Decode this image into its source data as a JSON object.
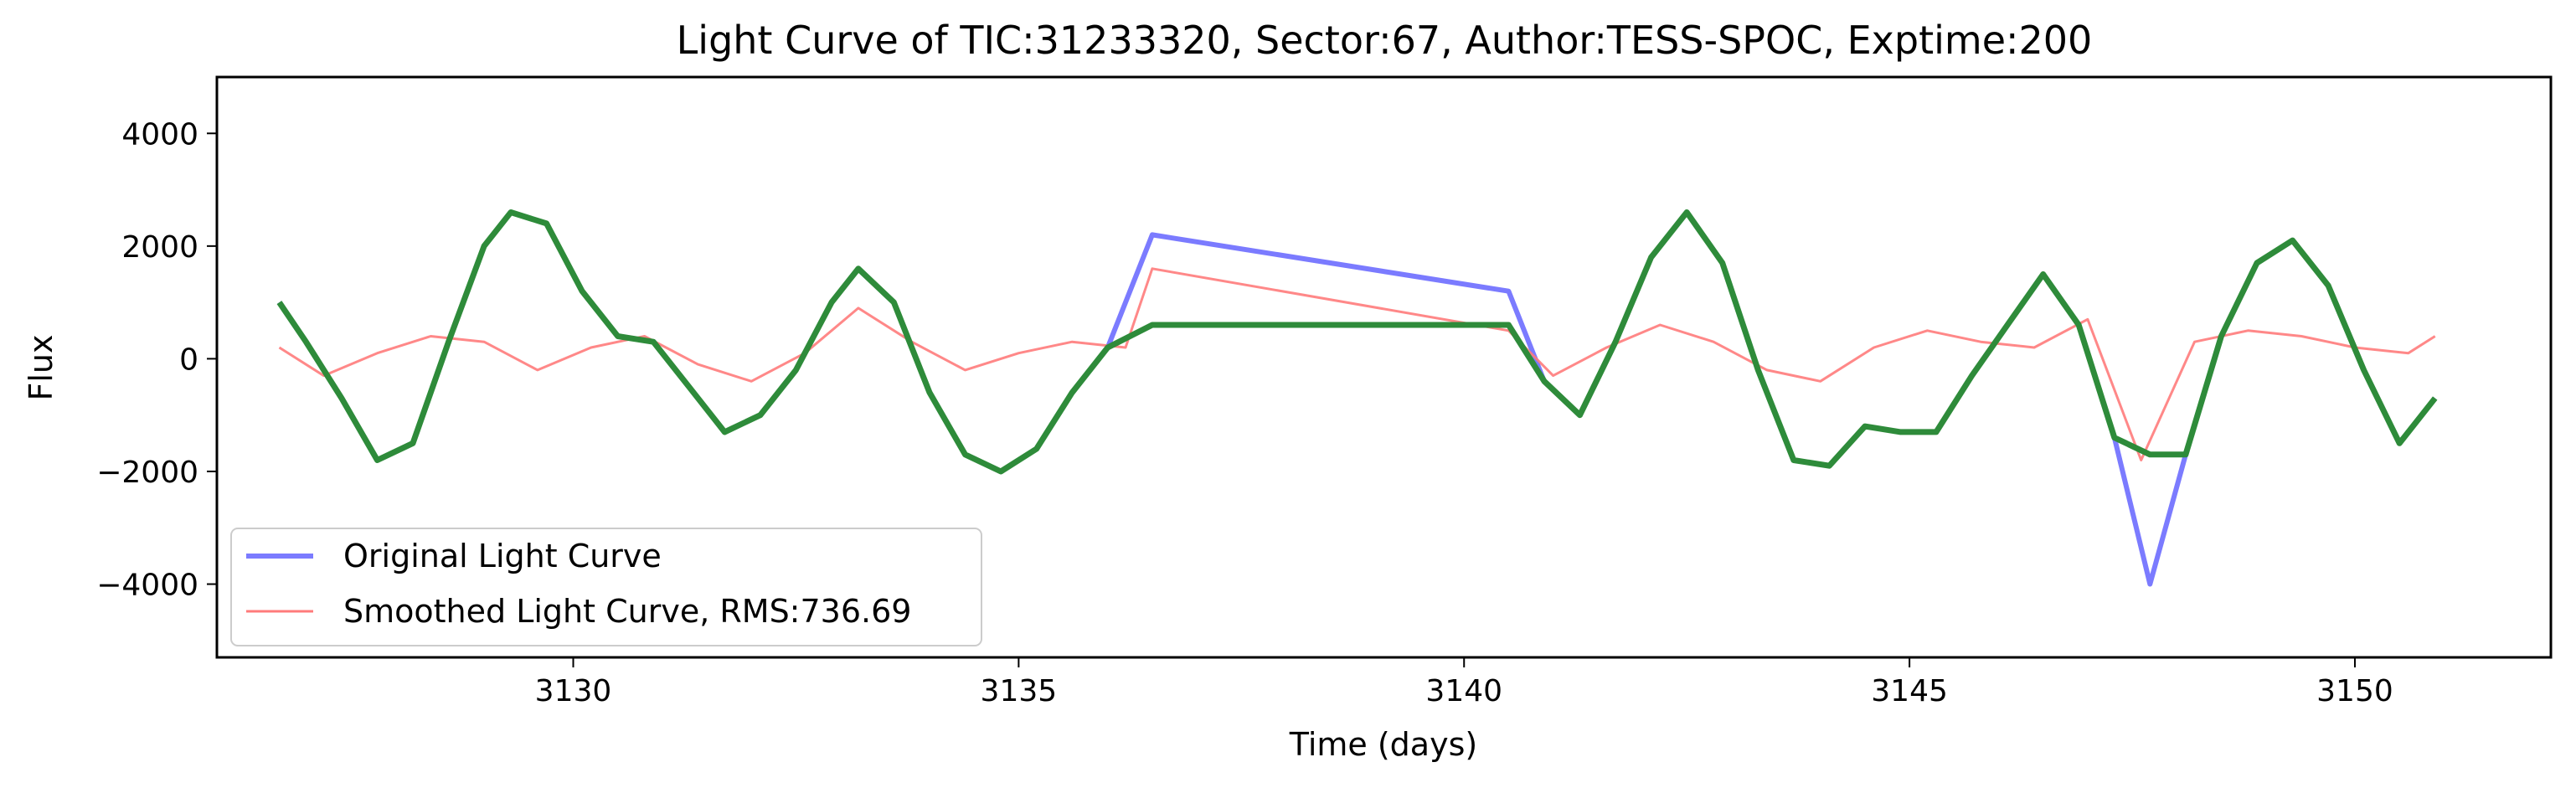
{
  "chart_data": {
    "type": "line",
    "title": "Light Curve of TIC:31233320, Sector:67, Author:TESS-SPOC, Exptime:200",
    "xlabel": "Time (days)",
    "ylabel": "Flux",
    "xlim": [
      3126.0,
      3152.2
    ],
    "ylim": [
      -5300,
      5000
    ],
    "x_ticks": [
      3130,
      3135,
      3140,
      3145,
      3150
    ],
    "y_ticks": [
      -4000,
      -2000,
      0,
      2000,
      4000
    ],
    "grid": false,
    "legend_placement": "lower-left",
    "series": [
      {
        "name": "Original Light Curve",
        "color": "#7b7bff",
        "x": [
          3126.7,
          3127.0,
          3127.4,
          3127.8,
          3128.2,
          3128.6,
          3129.0,
          3129.3,
          3129.7,
          3130.1,
          3130.5,
          3130.9,
          3131.3,
          3131.7,
          3132.1,
          3132.5,
          3132.9,
          3133.2,
          3133.6,
          3134.0,
          3134.4,
          3134.8,
          3135.2,
          3135.6,
          3136.0,
          3136.5,
          3140.5,
          3140.9,
          3141.3,
          3141.7,
          3142.1,
          3142.5,
          3142.9,
          3143.3,
          3143.7,
          3144.1,
          3144.5,
          3144.9,
          3145.3,
          3145.7,
          3146.1,
          3146.5,
          3146.9,
          3147.3,
          3147.7,
          3148.1,
          3148.5,
          3148.9,
          3149.3,
          3149.7,
          3150.1,
          3150.5,
          3150.9
        ],
        "values": [
          1000,
          300,
          -700,
          -1800,
          -1500,
          300,
          2000,
          2600,
          2400,
          1200,
          400,
          300,
          -500,
          -1300,
          -1000,
          -200,
          1000,
          1600,
          1000,
          -600,
          -1700,
          -2000,
          -1600,
          -600,
          200,
          2200,
          1200,
          -400,
          -1000,
          300,
          1800,
          2600,
          1700,
          -200,
          -1800,
          -1900,
          -1200,
          -1300,
          -1300,
          -300,
          600,
          1500,
          600,
          -1400,
          -4000,
          -1700,
          400,
          1700,
          2100,
          1300,
          -200,
          -1500,
          -700
        ]
      },
      {
        "name": "Smoothed Light Curve, RMS:736.69",
        "color": "#ff7b7b",
        "x": [
          3126.7,
          3127.2,
          3127.8,
          3128.4,
          3129.0,
          3129.6,
          3130.2,
          3130.8,
          3131.4,
          3132.0,
          3132.6,
          3133.2,
          3133.8,
          3134.4,
          3135.0,
          3135.6,
          3136.2,
          3136.5,
          3140.5,
          3141.0,
          3141.6,
          3142.2,
          3142.8,
          3143.4,
          3144.0,
          3144.6,
          3145.2,
          3145.8,
          3146.4,
          3147.0,
          3147.6,
          3148.2,
          3148.8,
          3149.4,
          3150.0,
          3150.6,
          3150.9
        ],
        "values": [
          200,
          -300,
          100,
          400,
          300,
          -200,
          200,
          400,
          -100,
          -400,
          100,
          900,
          300,
          -200,
          100,
          300,
          200,
          1600,
          500,
          -300,
          200,
          600,
          300,
          -200,
          -400,
          200,
          500,
          300,
          200,
          700,
          -1800,
          300,
          500,
          400,
          200,
          100,
          400
        ]
      },
      {
        "name": "",
        "color": "#2e8b3a",
        "x": [
          3126.7,
          3127.0,
          3127.4,
          3127.8,
          3128.2,
          3128.6,
          3129.0,
          3129.3,
          3129.7,
          3130.1,
          3130.5,
          3130.9,
          3131.3,
          3131.7,
          3132.1,
          3132.5,
          3132.9,
          3133.2,
          3133.6,
          3134.0,
          3134.4,
          3134.8,
          3135.2,
          3135.6,
          3136.0,
          3136.5,
          3140.5,
          3140.9,
          3141.3,
          3141.7,
          3142.1,
          3142.5,
          3142.9,
          3143.3,
          3143.7,
          3144.1,
          3144.5,
          3144.9,
          3145.3,
          3145.7,
          3146.1,
          3146.5,
          3146.9,
          3147.3,
          3147.7,
          3148.1,
          3148.5,
          3148.9,
          3149.3,
          3149.7,
          3150.1,
          3150.5,
          3150.9
        ],
        "values": [
          1000,
          300,
          -700,
          -1800,
          -1500,
          300,
          2000,
          2600,
          2400,
          1200,
          400,
          300,
          -500,
          -1300,
          -1000,
          -200,
          1000,
          1600,
          1000,
          -600,
          -1700,
          -2000,
          -1600,
          -600,
          200,
          600,
          600,
          -400,
          -1000,
          300,
          1800,
          2600,
          1700,
          -200,
          -1800,
          -1900,
          -1200,
          -1300,
          -1300,
          -300,
          600,
          1500,
          600,
          -1400,
          -1700,
          -1700,
          400,
          1700,
          2100,
          1300,
          -200,
          -1500,
          -700
        ]
      }
    ]
  }
}
